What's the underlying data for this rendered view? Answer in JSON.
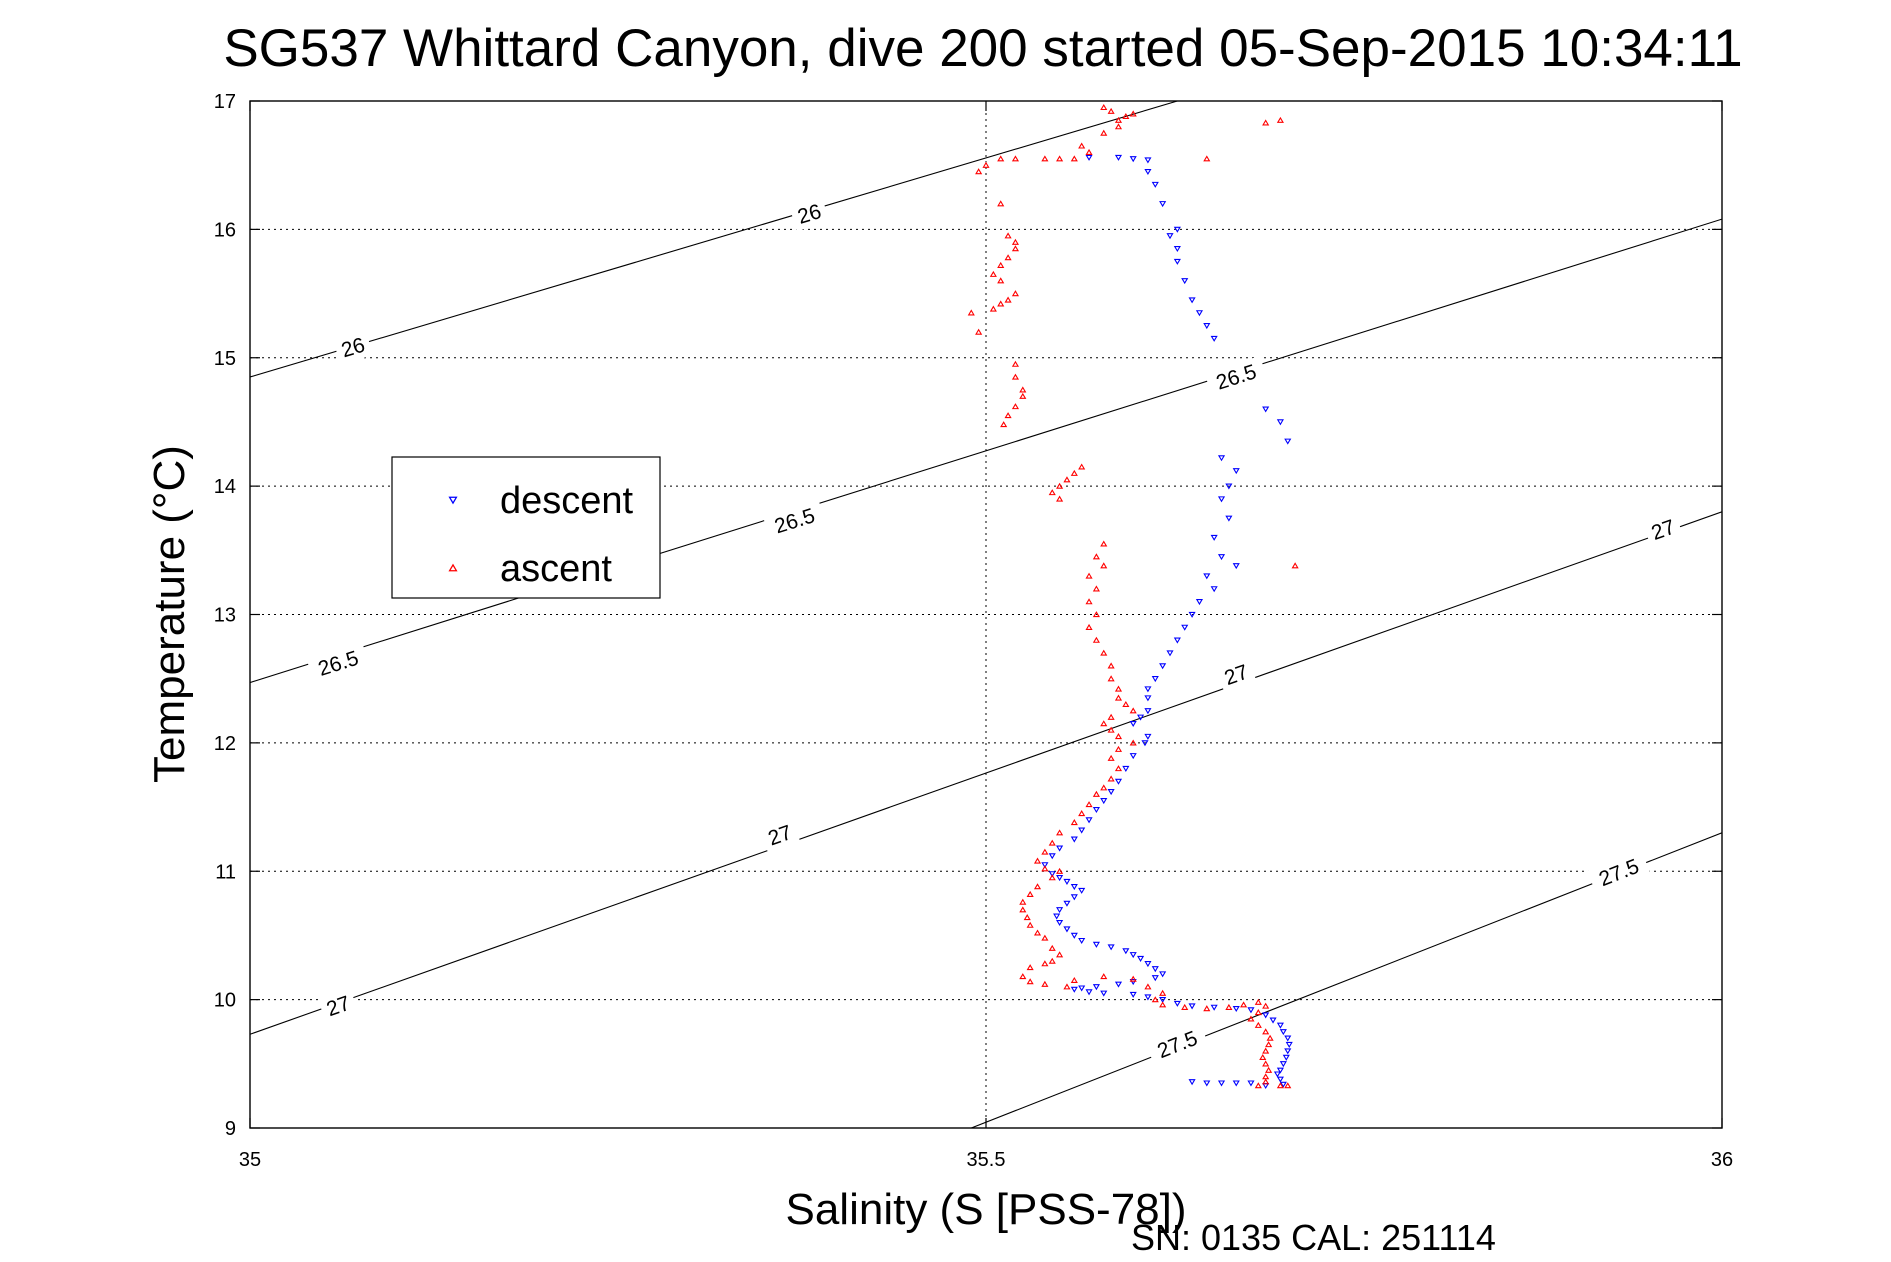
{
  "chart_data": {
    "type": "scatter",
    "title": "SG537 Whittard Canyon, dive 200 started 05-Sep-2015 10:34:11",
    "xlabel": "Salinity (S [PSS-78])",
    "ylabel": "Temperature (°C)",
    "xlim": [
      35,
      36
    ],
    "ylim": [
      9,
      17
    ],
    "xticks": [
      "35",
      "35.5",
      "36"
    ],
    "yticks": [
      "9",
      "10",
      "11",
      "12",
      "13",
      "14",
      "15",
      "16",
      "17"
    ],
    "grid": true,
    "legend_placement": "left",
    "footer": "SN: 0135  CAL: 251114",
    "contours": [
      {
        "level": "26",
        "line": [
          [
            35.0,
            14.85
          ],
          [
            35.63,
            17.0
          ]
        ],
        "labels": [
          [
            35.07,
            15.08
          ],
          [
            35.38,
            16.12
          ]
        ]
      },
      {
        "level": "26.5",
        "line": [
          [
            35.0,
            12.47
          ],
          [
            36.0,
            16.08
          ]
        ],
        "labels": [
          [
            35.06,
            12.62
          ],
          [
            35.37,
            13.73
          ],
          [
            35.67,
            14.85
          ]
        ]
      },
      {
        "level": "27",
        "line": [
          [
            35.0,
            9.73
          ],
          [
            36.0,
            13.8
          ]
        ],
        "labels": [
          [
            35.06,
            9.95
          ],
          [
            35.36,
            11.28
          ],
          [
            35.67,
            12.53
          ],
          [
            35.96,
            13.66
          ]
        ]
      },
      {
        "level": "27.5",
        "line": [
          [
            35.49,
            9.0
          ],
          [
            36.0,
            11.3
          ]
        ],
        "labels": [
          [
            35.63,
            9.65
          ],
          [
            35.93,
            10.99
          ]
        ]
      }
    ],
    "series": [
      {
        "name": "descent",
        "color": "#0000ff",
        "marker": "triangle-down",
        "points": [
          [
            35.57,
            16.56
          ],
          [
            35.59,
            16.56
          ],
          [
            35.6,
            16.55
          ],
          [
            35.61,
            16.54
          ],
          [
            35.61,
            16.45
          ],
          [
            35.615,
            16.35
          ],
          [
            35.62,
            16.2
          ],
          [
            35.63,
            16.0
          ],
          [
            35.625,
            15.95
          ],
          [
            35.63,
            15.85
          ],
          [
            35.63,
            15.75
          ],
          [
            35.635,
            15.6
          ],
          [
            35.64,
            15.45
          ],
          [
            35.645,
            15.35
          ],
          [
            35.65,
            15.25
          ],
          [
            35.655,
            15.15
          ],
          [
            35.69,
            14.6
          ],
          [
            35.7,
            14.5
          ],
          [
            35.705,
            14.35
          ],
          [
            35.66,
            14.22
          ],
          [
            35.67,
            14.12
          ],
          [
            35.665,
            14.0
          ],
          [
            35.66,
            13.9
          ],
          [
            35.665,
            13.75
          ],
          [
            35.655,
            13.6
          ],
          [
            35.66,
            13.45
          ],
          [
            35.67,
            13.38
          ],
          [
            35.65,
            13.3
          ],
          [
            35.655,
            13.2
          ],
          [
            35.645,
            13.1
          ],
          [
            35.64,
            13.0
          ],
          [
            35.635,
            12.9
          ],
          [
            35.63,
            12.8
          ],
          [
            35.625,
            12.7
          ],
          [
            35.62,
            12.6
          ],
          [
            35.615,
            12.5
          ],
          [
            35.61,
            12.42
          ],
          [
            35.61,
            12.35
          ],
          [
            35.61,
            12.25
          ],
          [
            35.605,
            12.2
          ],
          [
            35.6,
            12.15
          ],
          [
            35.61,
            12.05
          ],
          [
            35.608,
            12.0
          ],
          [
            35.6,
            11.9
          ],
          [
            35.595,
            11.8
          ],
          [
            35.59,
            11.7
          ],
          [
            35.585,
            11.62
          ],
          [
            35.58,
            11.55
          ],
          [
            35.575,
            11.48
          ],
          [
            35.57,
            11.4
          ],
          [
            35.565,
            11.32
          ],
          [
            35.56,
            11.25
          ],
          [
            35.55,
            11.18
          ],
          [
            35.545,
            11.12
          ],
          [
            35.54,
            11.05
          ],
          [
            35.545,
            10.98
          ],
          [
            35.55,
            10.95
          ],
          [
            35.555,
            10.92
          ],
          [
            35.56,
            10.88
          ],
          [
            35.565,
            10.85
          ],
          [
            35.56,
            10.8
          ],
          [
            35.555,
            10.75
          ],
          [
            35.55,
            10.7
          ],
          [
            35.548,
            10.65
          ],
          [
            35.55,
            10.6
          ],
          [
            35.555,
            10.55
          ],
          [
            35.56,
            10.5
          ],
          [
            35.565,
            10.46
          ],
          [
            35.575,
            10.43
          ],
          [
            35.585,
            10.41
          ],
          [
            35.595,
            10.38
          ],
          [
            35.6,
            10.35
          ],
          [
            35.605,
            10.32
          ],
          [
            35.61,
            10.28
          ],
          [
            35.615,
            10.24
          ],
          [
            35.62,
            10.2
          ],
          [
            35.615,
            10.17
          ],
          [
            35.6,
            10.14
          ],
          [
            35.59,
            10.12
          ],
          [
            35.575,
            10.1
          ],
          [
            35.565,
            10.09
          ],
          [
            35.56,
            10.08
          ],
          [
            35.57,
            10.06
          ],
          [
            35.58,
            10.05
          ],
          [
            35.6,
            10.04
          ],
          [
            35.61,
            10.02
          ],
          [
            35.62,
            10.0
          ],
          [
            35.63,
            9.97
          ],
          [
            35.64,
            9.95
          ],
          [
            35.655,
            9.94
          ],
          [
            35.67,
            9.93
          ],
          [
            35.68,
            9.92
          ],
          [
            35.69,
            9.88
          ],
          [
            35.695,
            9.84
          ],
          [
            35.7,
            9.8
          ],
          [
            35.702,
            9.75
          ],
          [
            35.705,
            9.7
          ],
          [
            35.706,
            9.65
          ],
          [
            35.705,
            9.6
          ],
          [
            35.704,
            9.55
          ],
          [
            35.702,
            9.5
          ],
          [
            35.7,
            9.45
          ],
          [
            35.698,
            9.42
          ],
          [
            35.7,
            9.38
          ],
          [
            35.702,
            9.34
          ],
          [
            35.69,
            9.33
          ],
          [
            35.68,
            9.35
          ],
          [
            35.67,
            9.35
          ],
          [
            35.66,
            9.35
          ],
          [
            35.65,
            9.35
          ],
          [
            35.64,
            9.36
          ]
        ]
      },
      {
        "name": "ascent",
        "color": "#ff0000",
        "marker": "triangle-up",
        "points": [
          [
            35.58,
            16.95
          ],
          [
            35.585,
            16.92
          ],
          [
            35.59,
            16.85
          ],
          [
            35.595,
            16.88
          ],
          [
            35.59,
            16.8
          ],
          [
            35.6,
            16.9
          ],
          [
            35.58,
            16.75
          ],
          [
            35.57,
            16.6
          ],
          [
            35.565,
            16.65
          ],
          [
            35.56,
            16.55
          ],
          [
            35.55,
            16.55
          ],
          [
            35.54,
            16.55
          ],
          [
            35.52,
            16.55
          ],
          [
            35.51,
            16.55
          ],
          [
            35.5,
            16.5
          ],
          [
            35.495,
            16.45
          ],
          [
            35.65,
            16.55
          ],
          [
            35.7,
            16.85
          ],
          [
            35.69,
            16.83
          ],
          [
            35.51,
            16.2
          ],
          [
            35.515,
            15.95
          ],
          [
            35.52,
            15.9
          ],
          [
            35.52,
            15.85
          ],
          [
            35.515,
            15.78
          ],
          [
            35.51,
            15.72
          ],
          [
            35.505,
            15.65
          ],
          [
            35.51,
            15.6
          ],
          [
            35.52,
            15.5
          ],
          [
            35.515,
            15.45
          ],
          [
            35.51,
            15.42
          ],
          [
            35.505,
            15.38
          ],
          [
            35.49,
            15.35
          ],
          [
            35.495,
            15.2
          ],
          [
            35.52,
            14.95
          ],
          [
            35.52,
            14.85
          ],
          [
            35.525,
            14.75
          ],
          [
            35.525,
            14.7
          ],
          [
            35.52,
            14.62
          ],
          [
            35.515,
            14.55
          ],
          [
            35.512,
            14.48
          ],
          [
            35.565,
            14.15
          ],
          [
            35.56,
            14.1
          ],
          [
            35.555,
            14.05
          ],
          [
            35.55,
            14.0
          ],
          [
            35.545,
            13.95
          ],
          [
            35.55,
            13.9
          ],
          [
            35.58,
            13.55
          ],
          [
            35.575,
            13.45
          ],
          [
            35.58,
            13.38
          ],
          [
            35.57,
            13.3
          ],
          [
            35.575,
            13.2
          ],
          [
            35.57,
            13.1
          ],
          [
            35.575,
            13.0
          ],
          [
            35.57,
            12.9
          ],
          [
            35.575,
            12.8
          ],
          [
            35.58,
            12.7
          ],
          [
            35.585,
            12.6
          ],
          [
            35.585,
            12.5
          ],
          [
            35.59,
            12.42
          ],
          [
            35.59,
            12.35
          ],
          [
            35.595,
            12.3
          ],
          [
            35.6,
            12.25
          ],
          [
            35.585,
            12.2
          ],
          [
            35.58,
            12.15
          ],
          [
            35.585,
            12.1
          ],
          [
            35.59,
            12.05
          ],
          [
            35.6,
            12.0
          ],
          [
            35.59,
            11.95
          ],
          [
            35.585,
            11.88
          ],
          [
            35.59,
            11.8
          ],
          [
            35.585,
            11.72
          ],
          [
            35.58,
            11.65
          ],
          [
            35.575,
            11.6
          ],
          [
            35.57,
            11.52
          ],
          [
            35.565,
            11.45
          ],
          [
            35.56,
            11.38
          ],
          [
            35.55,
            11.3
          ],
          [
            35.545,
            11.22
          ],
          [
            35.54,
            11.15
          ],
          [
            35.535,
            11.08
          ],
          [
            35.54,
            11.02
          ],
          [
            35.55,
            11.0
          ],
          [
            35.545,
            10.95
          ],
          [
            35.535,
            10.88
          ],
          [
            35.53,
            10.82
          ],
          [
            35.525,
            10.76
          ],
          [
            35.525,
            10.7
          ],
          [
            35.528,
            10.64
          ],
          [
            35.53,
            10.58
          ],
          [
            35.535,
            10.52
          ],
          [
            35.54,
            10.48
          ],
          [
            35.545,
            10.4
          ],
          [
            35.55,
            10.35
          ],
          [
            35.545,
            10.3
          ],
          [
            35.54,
            10.28
          ],
          [
            35.53,
            10.25
          ],
          [
            35.525,
            10.18
          ],
          [
            35.53,
            10.14
          ],
          [
            35.54,
            10.12
          ],
          [
            35.555,
            10.1
          ],
          [
            35.56,
            10.15
          ],
          [
            35.58,
            10.18
          ],
          [
            35.6,
            10.16
          ],
          [
            35.61,
            10.1
          ],
          [
            35.62,
            10.05
          ],
          [
            35.615,
            10.0
          ],
          [
            35.62,
            9.96
          ],
          [
            35.635,
            9.94
          ],
          [
            35.65,
            9.93
          ],
          [
            35.665,
            9.94
          ],
          [
            35.675,
            9.96
          ],
          [
            35.685,
            9.98
          ],
          [
            35.69,
            9.95
          ],
          [
            35.685,
            9.9
          ],
          [
            35.68,
            9.85
          ],
          [
            35.685,
            9.8
          ],
          [
            35.69,
            9.75
          ],
          [
            35.693,
            9.7
          ],
          [
            35.692,
            9.65
          ],
          [
            35.69,
            9.6
          ],
          [
            35.688,
            9.55
          ],
          [
            35.69,
            9.5
          ],
          [
            35.692,
            9.45
          ],
          [
            35.69,
            9.4
          ],
          [
            35.69,
            9.36
          ],
          [
            35.685,
            9.33
          ],
          [
            35.7,
            9.33
          ],
          [
            35.705,
            9.33
          ],
          [
            35.71,
            13.38
          ]
        ]
      }
    ]
  }
}
